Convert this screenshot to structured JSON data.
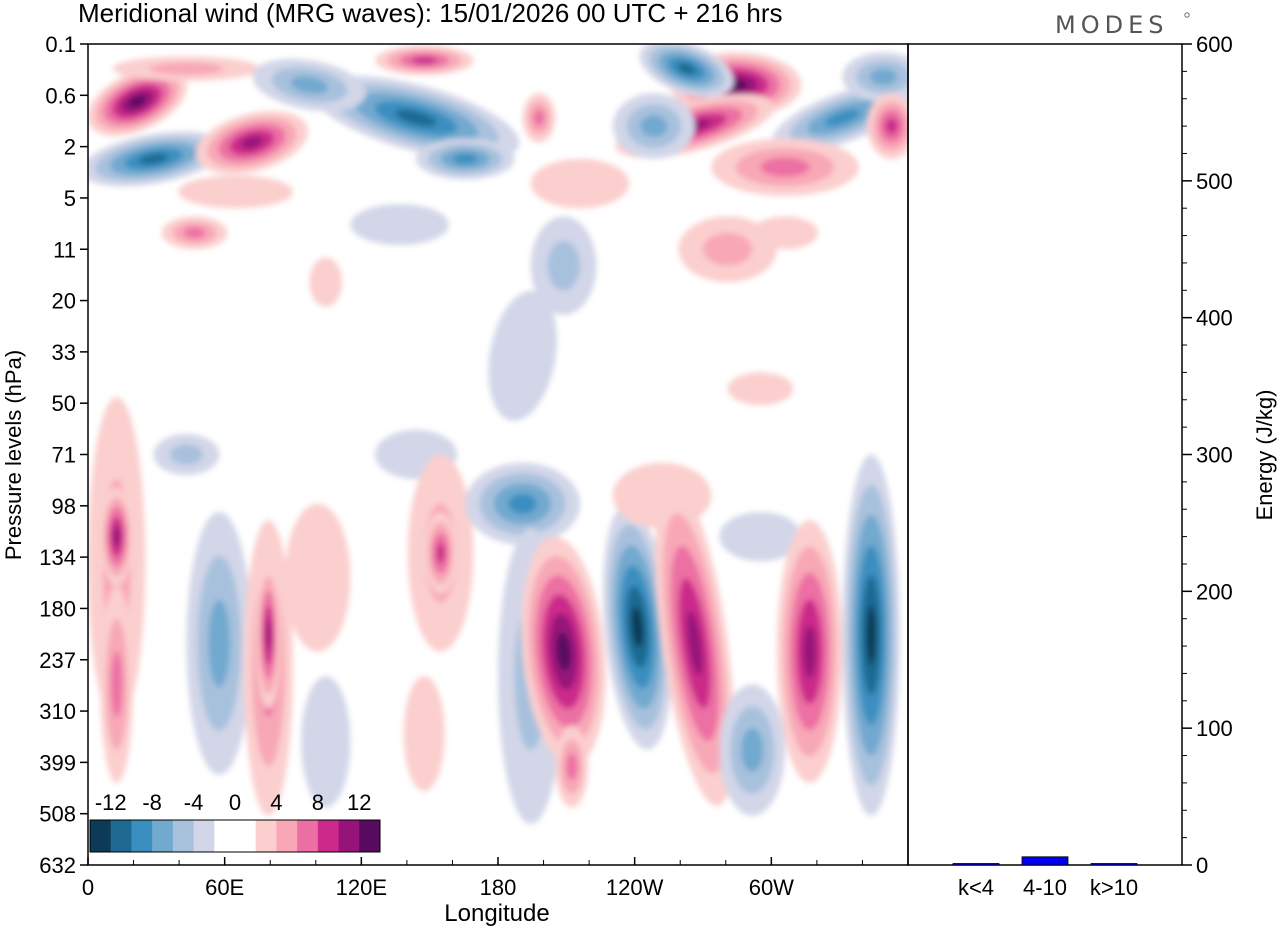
{
  "chart_data": [
    {
      "type": "heatmap",
      "title": "Meridional wind (MRG waves):  15/01/2026  00 UTC  + 216 hrs",
      "xlabel": "Longitude",
      "ylabel": "Pressure levels (hPa)",
      "x_ticks": [
        "0",
        "60E",
        "120E",
        "180",
        "120W",
        "60W"
      ],
      "y_ticks": [
        "0.1",
        "0.6",
        "2",
        "5",
        "11",
        "20",
        "33",
        "50",
        "71",
        "98",
        "134",
        "180",
        "237",
        "310",
        "399",
        "508",
        "632"
      ],
      "colorbar": {
        "labels": [
          "-12",
          "-8",
          "-4",
          "0",
          "4",
          "8",
          "12"
        ],
        "colors": [
          "#0d3b57",
          "#1e6a93",
          "#3b8fc0",
          "#72a9cf",
          "#a7c1dd",
          "#d2d6e8",
          "#ffffff",
          "#ffffff",
          "#fbcfce",
          "#f8a7b6",
          "#ec6fa3",
          "#cc2a8a",
          "#961479",
          "#580a60"
        ]
      }
    },
    {
      "type": "bar",
      "ylabel": "Energy (J/kg)",
      "categories": [
        "k<4",
        "4-10",
        "k>10"
      ],
      "values": [
        1,
        6,
        0.5
      ],
      "ylim": [
        0,
        600
      ],
      "y_ticks": [
        "0",
        "100",
        "200",
        "300",
        "400",
        "500",
        "600"
      ],
      "bar_color": "#0000ee"
    }
  ],
  "branding": {
    "logo": "MODES"
  },
  "colors": {
    "neg_strong": "#0d3b57",
    "pos_strong": "#580a60",
    "bar": "#0000ee"
  }
}
